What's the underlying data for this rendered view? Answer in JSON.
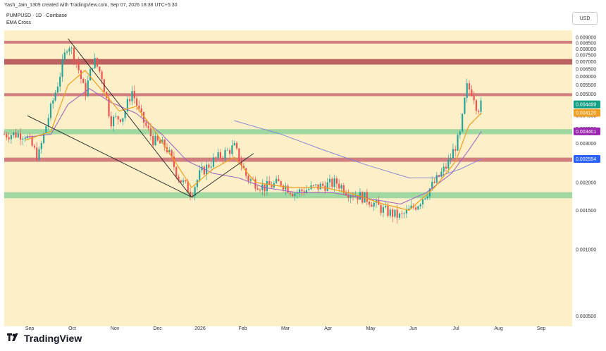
{
  "header": {
    "attribution": "Yash_Jain_1309 created with TradingView.com, Sep 07, 2026 18:38 UTC+5:30",
    "pair": "PUMPUSD · 1D · Coinbase",
    "indicator": "EMA Cross",
    "currency": "USD"
  },
  "brand": {
    "name": "TradingView"
  },
  "colors": {
    "background": "#fdefc8",
    "red_zone": "#c96b72",
    "dark_red_zone": "#b04a4f",
    "green_zone": "#8fd49a",
    "up_candle": "#26a69a",
    "down_candle": "#ef5350",
    "ema_fast": "#f0a020",
    "ema_slow": "#9c5fc0",
    "ema_long": "#7b7bd6",
    "trendline": "#222222",
    "tag_current": "#14a084",
    "tag_ema_fast": "#f0a020",
    "tag_ema_slow": "#9c27b0",
    "tag_ema_long": "#2962ff"
  },
  "chart_data": {
    "type": "candlestick",
    "scale": "log",
    "ylim": [
      0.00045,
      0.0097
    ],
    "y_ticks": [
      "0.009000",
      "0.008500",
      "0.008000",
      "0.007500",
      "0.007000",
      "0.006500",
      "0.006000",
      "0.005500",
      "0.005000",
      "0.004000",
      "0.003500",
      "0.003000",
      "0.002500",
      "0.002000",
      "0.001500",
      "0.001000",
      "0.000500"
    ],
    "x_labels": [
      "Sep",
      "Oct",
      "Nov",
      "Dec",
      "2026",
      "Feb",
      "Mar",
      "Apr",
      "May",
      "Jun",
      "Jul",
      "Aug",
      "Sep"
    ],
    "zones": [
      {
        "kind": "resistance",
        "color": "red",
        "low": 0.0086,
        "high": 0.0087
      },
      {
        "kind": "resistance",
        "color": "dark_red",
        "low": 0.0068,
        "high": 0.0072
      },
      {
        "kind": "resistance",
        "color": "red",
        "low": 0.0049,
        "high": 0.00505
      },
      {
        "kind": "support",
        "color": "green",
        "low": 0.0033,
        "high": 0.00348
      },
      {
        "kind": "resistance",
        "color": "red",
        "low": 0.00248,
        "high": 0.00259
      },
      {
        "kind": "support",
        "color": "green",
        "low": 0.0017,
        "high": 0.00181
      }
    ],
    "price_tags": [
      {
        "label": "0.004499",
        "value": 0.004499,
        "color": "tag_current"
      },
      {
        "label": "0.004120",
        "value": 0.00412,
        "color": "tag_ema_fast"
      },
      {
        "label": "0.003401",
        "value": 0.003401,
        "color": "tag_ema_slow"
      },
      {
        "label": "0.002554",
        "value": 0.002554,
        "color": "tag_ema_long"
      }
    ],
    "close_path": [
      {
        "m": 0,
        "v": 0.0033
      },
      {
        "m": 0.3,
        "v": 0.0026
      },
      {
        "m": 0.5,
        "v": 0.0037
      },
      {
        "m": 0.75,
        "v": 0.0055
      },
      {
        "m": 1.0,
        "v": 0.0086
      },
      {
        "m": 1.2,
        "v": 0.007
      },
      {
        "m": 1.4,
        "v": 0.005
      },
      {
        "m": 1.6,
        "v": 0.0072
      },
      {
        "m": 1.8,
        "v": 0.006
      },
      {
        "m": 2.0,
        "v": 0.0038
      },
      {
        "m": 2.3,
        "v": 0.004
      },
      {
        "m": 2.5,
        "v": 0.0052
      },
      {
        "m": 2.7,
        "v": 0.004
      },
      {
        "m": 3.0,
        "v": 0.0031
      },
      {
        "m": 3.3,
        "v": 0.0029
      },
      {
        "m": 3.6,
        "v": 0.0021
      },
      {
        "m": 3.9,
        "v": 0.0018
      },
      {
        "m": 4.1,
        "v": 0.0022
      },
      {
        "m": 4.4,
        "v": 0.0025
      },
      {
        "m": 4.9,
        "v": 0.0029
      },
      {
        "m": 5.2,
        "v": 0.0021
      },
      {
        "m": 5.6,
        "v": 0.0019
      },
      {
        "m": 6.0,
        "v": 0.002
      },
      {
        "m": 6.3,
        "v": 0.0018
      },
      {
        "m": 6.8,
        "v": 0.0019
      },
      {
        "m": 7.3,
        "v": 0.002
      },
      {
        "m": 7.6,
        "v": 0.0018
      },
      {
        "m": 8.0,
        "v": 0.0017
      },
      {
        "m": 8.4,
        "v": 0.0015
      },
      {
        "m": 8.8,
        "v": 0.0014
      },
      {
        "m": 9.2,
        "v": 0.0016
      },
      {
        "m": 9.6,
        "v": 0.002
      },
      {
        "m": 9.9,
        "v": 0.0024
      },
      {
        "m": 10.2,
        "v": 0.0033
      },
      {
        "m": 10.35,
        "v": 0.0054
      },
      {
        "m": 10.5,
        "v": 0.0051
      },
      {
        "m": 10.6,
        "v": 0.0043
      },
      {
        "m": 10.7,
        "v": 0.0045
      }
    ],
    "ema_fast_path": [
      {
        "m": 0,
        "v": 0.0031
      },
      {
        "m": 0.6,
        "v": 0.0034
      },
      {
        "m": 1.0,
        "v": 0.0055
      },
      {
        "m": 1.4,
        "v": 0.0064
      },
      {
        "m": 1.8,
        "v": 0.0052
      },
      {
        "m": 2.2,
        "v": 0.0042
      },
      {
        "m": 2.6,
        "v": 0.0044
      },
      {
        "m": 3.0,
        "v": 0.0035
      },
      {
        "m": 3.5,
        "v": 0.0025
      },
      {
        "m": 3.9,
        "v": 0.0019
      },
      {
        "m": 4.4,
        "v": 0.0023
      },
      {
        "m": 4.9,
        "v": 0.0026
      },
      {
        "m": 5.4,
        "v": 0.002
      },
      {
        "m": 6.2,
        "v": 0.0019
      },
      {
        "m": 7.0,
        "v": 0.0019
      },
      {
        "m": 7.6,
        "v": 0.0018
      },
      {
        "m": 8.4,
        "v": 0.0016
      },
      {
        "m": 9.0,
        "v": 0.0015
      },
      {
        "m": 9.6,
        "v": 0.0019
      },
      {
        "m": 10.1,
        "v": 0.0025
      },
      {
        "m": 10.4,
        "v": 0.0036
      },
      {
        "m": 10.7,
        "v": 0.00412
      }
    ],
    "ema_slow_path": [
      {
        "m": 0,
        "v": 0.0032
      },
      {
        "m": 0.6,
        "v": 0.0033
      },
      {
        "m": 1.0,
        "v": 0.0045
      },
      {
        "m": 1.5,
        "v": 0.0053
      },
      {
        "m": 2.0,
        "v": 0.0046
      },
      {
        "m": 2.6,
        "v": 0.0041
      },
      {
        "m": 3.2,
        "v": 0.0033
      },
      {
        "m": 3.8,
        "v": 0.0025
      },
      {
        "m": 4.4,
        "v": 0.0022
      },
      {
        "m": 5.0,
        "v": 0.0021
      },
      {
        "m": 5.6,
        "v": 0.0019
      },
      {
        "m": 6.4,
        "v": 0.0018
      },
      {
        "m": 7.2,
        "v": 0.0018
      },
      {
        "m": 8.0,
        "v": 0.0017
      },
      {
        "m": 8.8,
        "v": 0.0016
      },
      {
        "m": 9.4,
        "v": 0.0018
      },
      {
        "m": 10.0,
        "v": 0.0022
      },
      {
        "m": 10.4,
        "v": 0.0028
      },
      {
        "m": 10.7,
        "v": 0.003401
      }
    ],
    "ema_long_path": [
      {
        "m": 4.9,
        "v": 0.0038
      },
      {
        "m": 6.0,
        "v": 0.0033
      },
      {
        "m": 7.0,
        "v": 0.0028
      },
      {
        "m": 8.0,
        "v": 0.0024
      },
      {
        "m": 9.0,
        "v": 0.0021
      },
      {
        "m": 9.6,
        "v": 0.0021
      },
      {
        "m": 10.2,
        "v": 0.0023
      },
      {
        "m": 10.7,
        "v": 0.002554
      }
    ],
    "trendlines": [
      {
        "m1": 1.0,
        "v1": 0.0089,
        "m2": 3.9,
        "v2": 0.00172
      },
      {
        "m1": 0.05,
        "v1": 0.004,
        "m2": 3.9,
        "v2": 0.00172
      },
      {
        "m1": 3.9,
        "v1": 0.00172,
        "m2": 5.35,
        "v2": 0.0027
      }
    ]
  }
}
